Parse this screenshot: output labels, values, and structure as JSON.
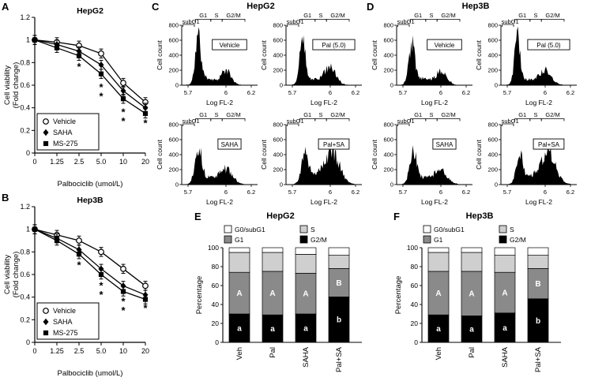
{
  "panels": {
    "A": "A",
    "B": "B",
    "C": "C",
    "D": "D",
    "E": "E",
    "F": "F"
  },
  "group_titles": {
    "C": "HepG2",
    "D": "Hep3B",
    "E": "HepG2",
    "F": "Hep3B"
  },
  "chart_data": [
    {
      "id": "A",
      "type": "line",
      "title": "HepG2",
      "xlabel": "Palbociclib (umol/L)",
      "ylabel_lines": [
        "Cell viability",
        "(Fold change)"
      ],
      "x_tick_labels": [
        "0",
        "1.25",
        "2.5",
        "5.0",
        "10",
        "20"
      ],
      "ylim": [
        0,
        1.2
      ],
      "yticks": [
        0,
        0.2,
        0.4,
        0.6,
        0.8,
        1,
        1.2
      ],
      "ytick_labels": [
        "0",
        "0.2",
        "0.4",
        "0.6",
        "0.8",
        "1",
        "1.2"
      ],
      "error": 0.04,
      "series": [
        {
          "name": "Vehicle",
          "marker": "open-circle",
          "values": [
            1.0,
            0.98,
            0.95,
            0.88,
            0.62,
            0.45
          ]
        },
        {
          "name": "SAHA",
          "marker": "filled-diamond",
          "values": [
            1.0,
            0.96,
            0.9,
            0.78,
            0.55,
            0.4
          ]
        },
        {
          "name": "MS-275",
          "marker": "filled-square",
          "values": [
            1.0,
            0.93,
            0.86,
            0.7,
            0.48,
            0.35
          ]
        }
      ],
      "asterisks": [
        [
          2,
          0.76
        ],
        [
          3,
          0.58
        ],
        [
          3,
          0.5
        ],
        [
          4,
          0.36
        ],
        [
          4,
          0.28
        ],
        [
          5,
          0.26
        ]
      ]
    },
    {
      "id": "B",
      "type": "line",
      "title": "Hep3B",
      "xlabel": "Palbociclib (umol/L)",
      "ylabel_lines": [
        "Cell viability",
        "(Fold change)"
      ],
      "x_tick_labels": [
        "0",
        "1.25",
        "2.5",
        "5.0",
        "10",
        "20"
      ],
      "ylim": [
        0,
        1.2
      ],
      "yticks": [
        0,
        0.2,
        0.4,
        0.6,
        0.8,
        1,
        1.2
      ],
      "ytick_labels": [
        "0",
        "0.2",
        "0.4",
        "0.6",
        "0.8",
        "1",
        "1.2"
      ],
      "error": 0.04,
      "series": [
        {
          "name": "Vehicle",
          "marker": "open-circle",
          "values": [
            1.0,
            0.95,
            0.9,
            0.8,
            0.65,
            0.5
          ]
        },
        {
          "name": "SAHA",
          "marker": "filled-diamond",
          "values": [
            1.0,
            0.92,
            0.82,
            0.65,
            0.5,
            0.42
          ]
        },
        {
          "name": "MS-275",
          "marker": "filled-square",
          "values": [
            1.0,
            0.9,
            0.78,
            0.6,
            0.45,
            0.38
          ]
        }
      ],
      "asterisks": [
        [
          2,
          0.68
        ],
        [
          3,
          0.5
        ],
        [
          3,
          0.42
        ],
        [
          4,
          0.36
        ],
        [
          4,
          0.28
        ],
        [
          5,
          0.3
        ]
      ]
    },
    {
      "id": "C-vehicle",
      "type": "histogram",
      "condition": "Vehicle",
      "xlabel": "Log FL-2",
      "ylabel": "Cell count",
      "ylim": [
        0,
        800
      ],
      "yticks": [
        0,
        200,
        400,
        600,
        800
      ],
      "xlim": [
        5.65,
        6.25
      ],
      "xticks": [
        {
          "v": 5.7,
          "label": "5.7"
        },
        {
          "v": 6.0,
          "label": "6"
        },
        {
          "v": 6.2,
          "label": "6.2"
        }
      ],
      "regions": {
        "subG1": [
          5.66,
          5.75
        ],
        "G1": [
          5.76,
          5.88
        ],
        "S": [
          5.88,
          5.97
        ],
        "G2/M": [
          5.97,
          6.15
        ]
      },
      "peaks": [
        {
          "c": 5.78,
          "a": 600,
          "w": 0.022
        },
        {
          "c": 5.85,
          "a": 90,
          "w": 0.06
        },
        {
          "c": 6.0,
          "a": 185,
          "w": 0.04
        }
      ],
      "seed": 11
    },
    {
      "id": "C-pal",
      "type": "histogram",
      "condition": "Pal (5.0)",
      "xlabel": "Log FL-2",
      "ylabel": "Cell count",
      "ylim": [
        0,
        800
      ],
      "yticks": [
        0,
        200,
        400,
        600,
        800
      ],
      "xlim": [
        5.65,
        6.25
      ],
      "xticks": [
        {
          "v": 5.7,
          "label": "5.7"
        },
        {
          "v": 6.0,
          "label": "6"
        },
        {
          "v": 6.2,
          "label": "6.2"
        }
      ],
      "regions": {
        "subG1": [
          5.66,
          5.75
        ],
        "G1": [
          5.76,
          5.88
        ],
        "S": [
          5.88,
          5.97
        ],
        "G2/M": [
          5.97,
          6.15
        ]
      },
      "peaks": [
        {
          "c": 5.78,
          "a": 660,
          "w": 0.022
        },
        {
          "c": 5.86,
          "a": 80,
          "w": 0.06
        },
        {
          "c": 6.0,
          "a": 240,
          "w": 0.045
        }
      ],
      "seed": 12
    },
    {
      "id": "C-saha",
      "type": "histogram",
      "condition": "SAHA",
      "xlabel": "Log FL-2",
      "ylabel": "Cell count",
      "ylim": [
        0,
        800
      ],
      "yticks": [
        0,
        200,
        400,
        600,
        800
      ],
      "xlim": [
        5.65,
        6.25
      ],
      "xticks": [
        {
          "v": 5.7,
          "label": "5.7"
        },
        {
          "v": 6.0,
          "label": "6"
        },
        {
          "v": 6.2,
          "label": "6.2"
        }
      ],
      "regions": {
        "subG1": [
          5.66,
          5.75
        ],
        "G1": [
          5.76,
          5.88
        ],
        "S": [
          5.88,
          5.97
        ],
        "G2/M": [
          5.97,
          6.15
        ]
      },
      "peaks": [
        {
          "c": 5.78,
          "a": 500,
          "w": 0.026
        },
        {
          "c": 5.86,
          "a": 90,
          "w": 0.06
        },
        {
          "c": 6.0,
          "a": 200,
          "w": 0.05
        }
      ],
      "seed": 13
    },
    {
      "id": "C-palsa",
      "type": "histogram",
      "condition": "Pal+SA",
      "xlabel": "Log FL-2",
      "ylabel": "Cell count",
      "ylim": [
        0,
        800
      ],
      "yticks": [
        0,
        200,
        400,
        600,
        800
      ],
      "xlim": [
        5.65,
        6.25
      ],
      "xticks": [
        {
          "v": 5.7,
          "label": "5.7"
        },
        {
          "v": 6.0,
          "label": "6"
        },
        {
          "v": 6.2,
          "label": "6.2"
        }
      ],
      "regions": {
        "subG1": [
          5.66,
          5.75
        ],
        "G1": [
          5.76,
          5.88
        ],
        "S": [
          5.88,
          5.97
        ],
        "G2/M": [
          5.97,
          6.15
        ]
      },
      "peaks": [
        {
          "c": 5.8,
          "a": 400,
          "w": 0.028
        },
        {
          "c": 5.9,
          "a": 120,
          "w": 0.06
        },
        {
          "c": 6.02,
          "a": 420,
          "w": 0.055
        }
      ],
      "seed": 14
    },
    {
      "id": "D-vehicle",
      "type": "histogram",
      "condition": "Vehicle",
      "xlabel": "Log FL-2",
      "ylabel": "Cell count",
      "ylim": [
        0,
        800
      ],
      "yticks": [
        0,
        200,
        400,
        600,
        800
      ],
      "xlim": [
        5.65,
        6.25
      ],
      "xticks": [
        {
          "v": 5.7,
          "label": "5.7"
        },
        {
          "v": 6.0,
          "label": "6"
        },
        {
          "v": 6.2,
          "label": "6.2"
        }
      ],
      "regions": {
        "subG1": [
          5.66,
          5.75
        ],
        "G1": [
          5.76,
          5.88
        ],
        "S": [
          5.88,
          5.97
        ],
        "G2/M": [
          5.97,
          6.15
        ]
      },
      "peaks": [
        {
          "c": 5.77,
          "a": 520,
          "w": 0.024
        },
        {
          "c": 5.85,
          "a": 80,
          "w": 0.06
        },
        {
          "c": 6.0,
          "a": 170,
          "w": 0.045
        }
      ],
      "seed": 15
    },
    {
      "id": "D-pal",
      "type": "histogram",
      "condition": "Pal (5.0)",
      "xlabel": "Log FL-2",
      "ylabel": "Cell count",
      "ylim": [
        0,
        800
      ],
      "yticks": [
        0,
        200,
        400,
        600,
        800
      ],
      "xlim": [
        5.65,
        6.25
      ],
      "xticks": [
        {
          "v": 5.7,
          "label": "5.7"
        },
        {
          "v": 6.0,
          "label": "6"
        },
        {
          "v": 6.2,
          "label": "6.2"
        }
      ],
      "regions": {
        "subG1": [
          5.66,
          5.75
        ],
        "G1": [
          5.76,
          5.88
        ],
        "S": [
          5.88,
          5.97
        ],
        "G2/M": [
          5.97,
          6.15
        ]
      },
      "peaks": [
        {
          "c": 5.78,
          "a": 600,
          "w": 0.022
        },
        {
          "c": 5.86,
          "a": 70,
          "w": 0.06
        },
        {
          "c": 6.0,
          "a": 200,
          "w": 0.045
        }
      ],
      "seed": 16
    },
    {
      "id": "D-saha",
      "type": "histogram",
      "condition": "SAHA",
      "xlabel": "Log FL-2",
      "ylabel": "Cell count",
      "ylim": [
        0,
        800
      ],
      "yticks": [
        0,
        200,
        400,
        600,
        800
      ],
      "xlim": [
        5.65,
        6.25
      ],
      "xticks": [
        {
          "v": 5.7,
          "label": "5.7"
        },
        {
          "v": 6.0,
          "label": "6"
        },
        {
          "v": 6.2,
          "label": "6.2"
        }
      ],
      "regions": {
        "subG1": [
          5.66,
          5.75
        ],
        "G1": [
          5.76,
          5.88
        ],
        "S": [
          5.88,
          5.97
        ],
        "G2/M": [
          5.97,
          6.15
        ]
      },
      "peaks": [
        {
          "c": 5.78,
          "a": 430,
          "w": 0.026
        },
        {
          "c": 5.86,
          "a": 90,
          "w": 0.06
        },
        {
          "c": 6.0,
          "a": 190,
          "w": 0.05
        }
      ],
      "seed": 17
    },
    {
      "id": "D-palsa",
      "type": "histogram",
      "condition": "Pal+SA",
      "xlabel": "Log FL-2",
      "ylabel": "Cell count",
      "ylim": [
        0,
        800
      ],
      "yticks": [
        0,
        200,
        400,
        600,
        800
      ],
      "xlim": [
        5.65,
        6.25
      ],
      "xticks": [
        {
          "v": 5.7,
          "label": "5.7"
        },
        {
          "v": 6.0,
          "label": "6"
        },
        {
          "v": 6.2,
          "label": "6.2"
        }
      ],
      "regions": {
        "subG1": [
          5.66,
          5.75
        ],
        "G1": [
          5.76,
          5.88
        ],
        "S": [
          5.88,
          5.97
        ],
        "G2/M": [
          5.97,
          6.15
        ]
      },
      "peaks": [
        {
          "c": 5.8,
          "a": 360,
          "w": 0.028
        },
        {
          "c": 5.92,
          "a": 110,
          "w": 0.06
        },
        {
          "c": 6.03,
          "a": 390,
          "w": 0.055
        }
      ],
      "seed": 18
    },
    {
      "id": "E",
      "type": "stacked_bar",
      "title": "HepG2",
      "ylabel": "Percentage",
      "ylim": [
        0,
        100
      ],
      "yticks": [
        0,
        20,
        40,
        60,
        80,
        100
      ],
      "phases": [
        {
          "name": "G0/subG1",
          "color": "#ffffff"
        },
        {
          "name": "G1",
          "color": "#8a8a8a"
        },
        {
          "name": "S",
          "color": "#cfcfcf"
        },
        {
          "name": "G2/M",
          "color": "#000000"
        }
      ],
      "stack_order": [
        "G2/M",
        "G1",
        "S",
        "G0/subG1"
      ],
      "categories": [
        "Veh",
        "Pal",
        "SAHA",
        "Pal+SA"
      ],
      "values": [
        {
          "G0/subG1": 5,
          "G1": 44,
          "S": 21,
          "G2/M": 30
        },
        {
          "G0/subG1": 5,
          "G1": 46,
          "S": 20,
          "G2/M": 29
        },
        {
          "G0/subG1": 7,
          "G1": 43,
          "S": 20,
          "G2/M": 30
        },
        {
          "G0/subG1": 8,
          "G1": 30,
          "S": 14,
          "G2/M": 48
        }
      ],
      "letters": [
        {
          "G2/M": "a",
          "G1": "A"
        },
        {
          "G2/M": "a",
          "G1": "A"
        },
        {
          "G2/M": "a",
          "G1": "A"
        },
        {
          "G2/M": "b",
          "G1": "B"
        }
      ]
    },
    {
      "id": "F",
      "type": "stacked_bar",
      "title": "Hep3B",
      "ylabel": "Percentage",
      "ylim": [
        0,
        100
      ],
      "yticks": [
        0,
        20,
        40,
        60,
        80,
        100
      ],
      "phases": [
        {
          "name": "G0/subG1",
          "color": "#ffffff"
        },
        {
          "name": "G1",
          "color": "#8a8a8a"
        },
        {
          "name": "S",
          "color": "#cfcfcf"
        },
        {
          "name": "G2/M",
          "color": "#000000"
        }
      ],
      "stack_order": [
        "G2/M",
        "G1",
        "S",
        "G0/subG1"
      ],
      "categories": [
        "Veh",
        "Pal",
        "SAHA",
        "Pal+SA"
      ],
      "values": [
        {
          "G0/subG1": 5,
          "G1": 46,
          "S": 20,
          "G2/M": 29
        },
        {
          "G0/subG1": 5,
          "G1": 47,
          "S": 20,
          "G2/M": 28
        },
        {
          "G0/subG1": 8,
          "G1": 43,
          "S": 18,
          "G2/M": 31
        },
        {
          "G0/subG1": 8,
          "G1": 32,
          "S": 14,
          "G2/M": 46
        }
      ],
      "letters": [
        {
          "G2/M": "a",
          "G1": "A"
        },
        {
          "G2/M": "a",
          "G1": "A"
        },
        {
          "G2/M": "a",
          "G1": "A"
        },
        {
          "G2/M": "b",
          "G1": "B"
        }
      ]
    }
  ]
}
